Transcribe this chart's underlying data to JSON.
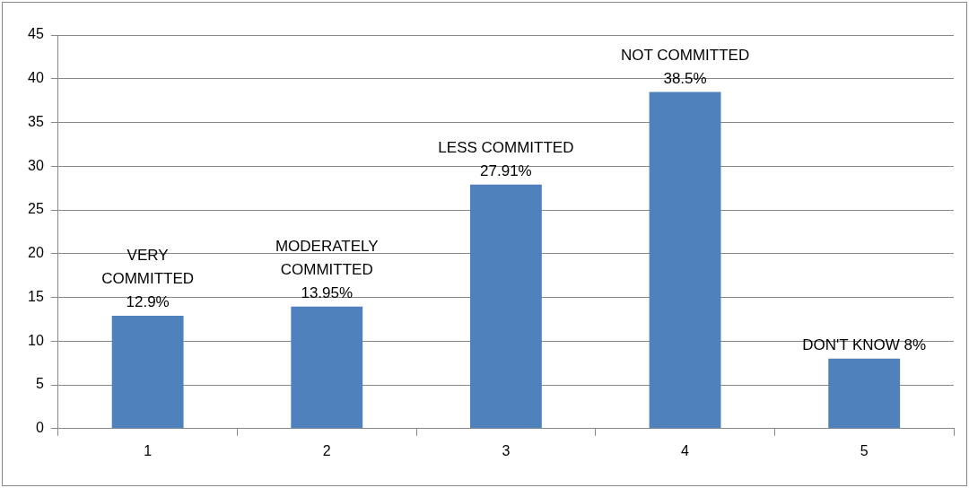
{
  "chart_data": {
    "type": "bar",
    "categories": [
      "1",
      "2",
      "3",
      "4",
      "5"
    ],
    "values": [
      12.9,
      13.95,
      27.91,
      38.5,
      8
    ],
    "color": "#4f81bd",
    "value_labels": [
      "VERY\nCOMMITTED\n12.9%",
      "MODERATELY\nCOMMITTED\n13.95%",
      "LESS COMMITTED\n27.91%",
      "NOT COMMITTED\n38.5%",
      "DON'T KNOW 8%"
    ],
    "ylim": [
      0,
      45
    ],
    "yticks": [
      0,
      5,
      10,
      15,
      20,
      25,
      30,
      35,
      40,
      45
    ],
    "grid": "y",
    "legend": false
  }
}
